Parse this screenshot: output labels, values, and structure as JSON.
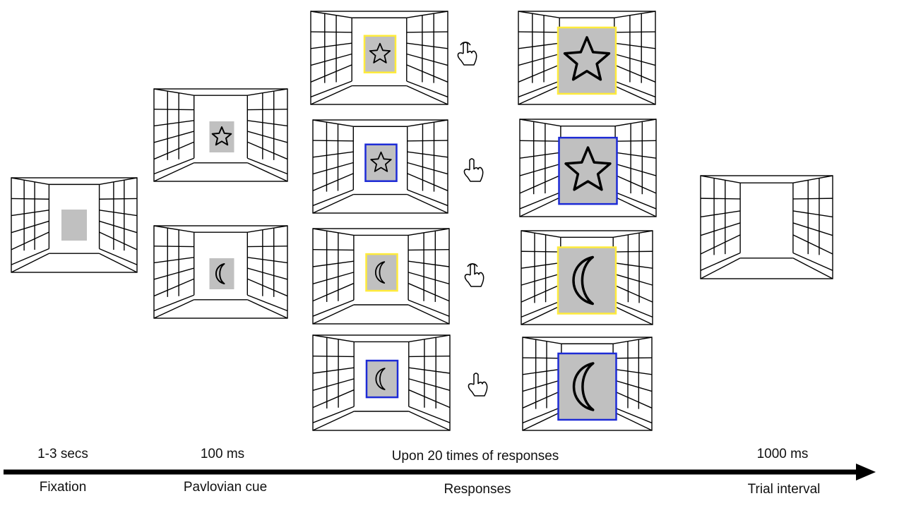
{
  "colors": {
    "background": "#ffffff",
    "line": "#000000",
    "cue_gray": "#c0c0c0",
    "frame_yellow": "#ffeb3b",
    "frame_blue": "#1d2bd6"
  },
  "stages": [
    {
      "duration": "1-3 secs",
      "name": "Fixation"
    },
    {
      "duration": "100 ms",
      "name": "Pavlovian cue"
    },
    {
      "duration": "Upon 20 times of responses",
      "name": "Responses"
    },
    {
      "duration": "1000 ms",
      "name": "Trial interval"
    }
  ],
  "panels": {
    "fixation": {
      "stimulus": "gray-square"
    },
    "pavlovian": [
      {
        "symbol": "star-icon"
      },
      {
        "symbol": "crescent-icon"
      }
    ],
    "responses": [
      {
        "symbol": "star-icon",
        "frame": "yellow",
        "hand": "hand-tap-icon"
      },
      {
        "symbol": "star-icon",
        "frame": "blue",
        "hand": "hand-pointing-icon"
      },
      {
        "symbol": "crescent-icon",
        "frame": "yellow",
        "hand": "hand-tap-icon"
      },
      {
        "symbol": "crescent-icon",
        "frame": "blue",
        "hand": "hand-pointing-icon"
      }
    ],
    "trial_interval": {
      "stimulus": "none"
    }
  }
}
